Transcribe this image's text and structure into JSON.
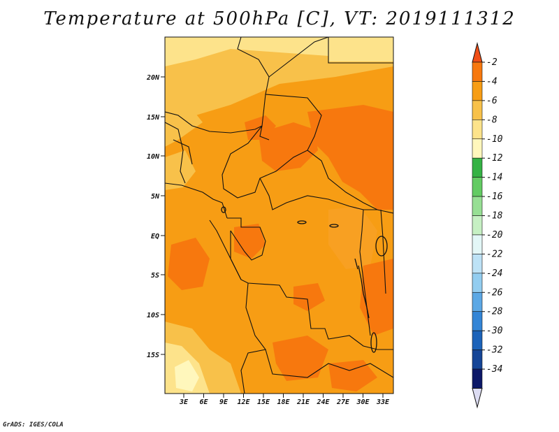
{
  "title": "Temperature at 500hPa [C], VT: 2019111312",
  "credit": "GrADS: IGES/COLA",
  "lat_labels": [
    "20N",
    "15N",
    "10N",
    "5N",
    "EQ",
    "5S",
    "10S",
    "15S"
  ],
  "lon_labels": [
    "3E",
    "6E",
    "9E",
    "12E",
    "15E",
    "18E",
    "21E",
    "24E",
    "27E",
    "30E",
    "33E"
  ],
  "colorbar": {
    "labels": [
      "-2",
      "-4",
      "-6",
      "-8",
      "-10",
      "-12",
      "-14",
      "-16",
      "-18",
      "-20",
      "-22",
      "-24",
      "-26",
      "-28",
      "-30",
      "-32",
      "-34"
    ],
    "colors": [
      "#f04e16",
      "#f7780e",
      "#f79d14",
      "#f8c14a",
      "#fde38b",
      "#fff7bc",
      "#34b244",
      "#63cb63",
      "#97df94",
      "#c6f0c3",
      "#e3f7f7",
      "#bde2f6",
      "#93cdf0",
      "#5ca8e5",
      "#3385d6",
      "#1c63b9",
      "#154597",
      "#0c1868",
      "#dcdcf2"
    ]
  }
}
